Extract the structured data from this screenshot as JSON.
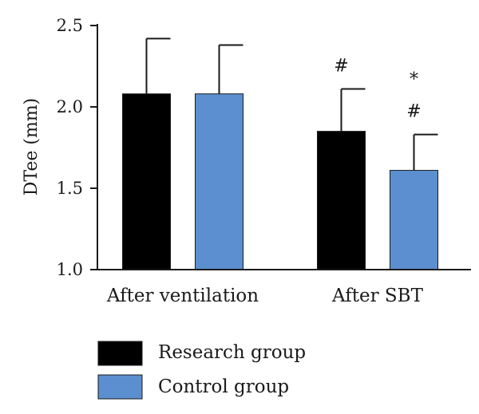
{
  "chart_data": {
    "type": "bar",
    "title": "",
    "xlabel": "",
    "ylabel": "DTee (mm)",
    "ylim": [
      1.0,
      2.5
    ],
    "yticks": [
      "1.0",
      "1.5",
      "2.0",
      "2.5"
    ],
    "categories": [
      "After ventilation",
      "After SBT"
    ],
    "series": [
      {
        "name": "Research group",
        "color": "#000000",
        "values": [
          2.08,
          1.85
        ],
        "errors": [
          0.34,
          0.26
        ]
      },
      {
        "name": "Control group",
        "color": "#5b8fd0",
        "values": [
          2.08,
          1.61
        ],
        "errors": [
          0.3,
          0.22
        ]
      }
    ],
    "annotations": [
      {
        "category": 1,
        "series": 0,
        "marks": [
          "#"
        ]
      },
      {
        "category": 1,
        "series": 1,
        "marks": [
          "#",
          "*"
        ]
      }
    ],
    "legend_position": "bottom-left",
    "grid": false
  }
}
